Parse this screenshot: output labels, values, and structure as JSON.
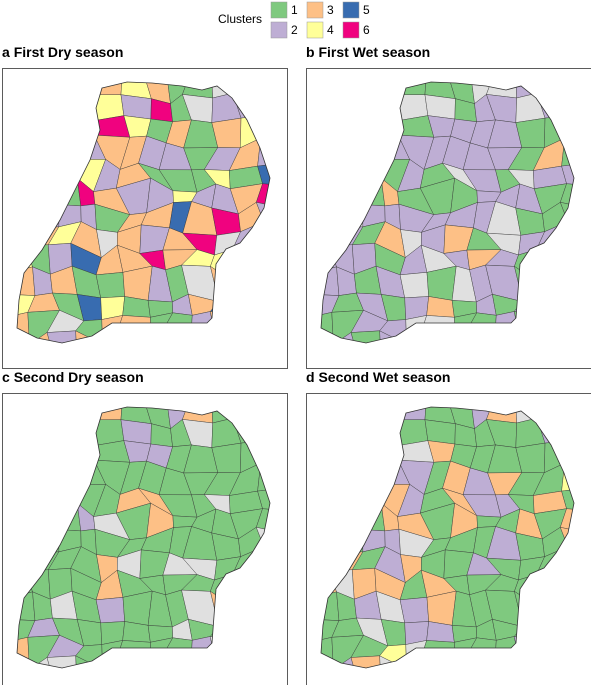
{
  "legend": {
    "title": "Clusters",
    "items": [
      {
        "label": "1",
        "color": "#7fc97f"
      },
      {
        "label": "2",
        "color": "#beaed4"
      },
      {
        "label": "3",
        "color": "#fdc086"
      },
      {
        "label": "4",
        "color": "#ffff99"
      },
      {
        "label": "5",
        "color": "#386cb0"
      },
      {
        "label": "6",
        "color": "#f0027f"
      }
    ]
  },
  "panels": [
    {
      "letter": "a",
      "title": "First Dry season"
    },
    {
      "letter": "b",
      "title": "First Wet season"
    },
    {
      "letter": "c",
      "title": "Second Dry season"
    },
    {
      "letter": "d",
      "title": "Second Wet season"
    }
  ]
}
